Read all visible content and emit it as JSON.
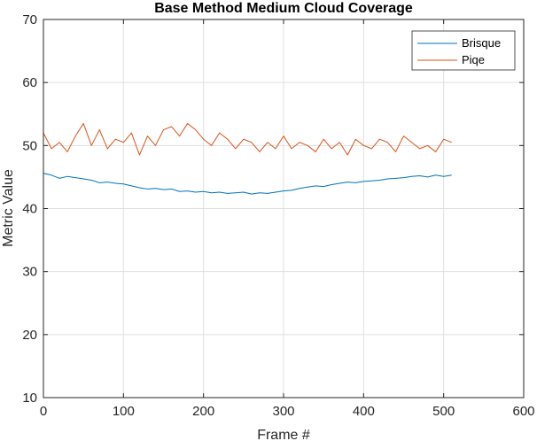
{
  "chart_data": {
    "type": "line",
    "title": "Base Method Medium Cloud Coverage",
    "xlabel": "Frame #",
    "ylabel": "Metric Value",
    "xlim": [
      0,
      600
    ],
    "ylim": [
      10,
      70
    ],
    "xticks": [
      0,
      100,
      200,
      300,
      400,
      500,
      600
    ],
    "yticks": [
      10,
      20,
      30,
      40,
      50,
      60,
      70
    ],
    "grid": true,
    "legend_position": "top-right",
    "x": [
      0,
      10,
      20,
      30,
      40,
      50,
      60,
      70,
      80,
      90,
      100,
      110,
      120,
      130,
      140,
      150,
      160,
      170,
      180,
      190,
      200,
      210,
      220,
      230,
      240,
      250,
      260,
      270,
      280,
      290,
      300,
      310,
      320,
      330,
      340,
      350,
      360,
      370,
      380,
      390,
      400,
      410,
      420,
      430,
      440,
      450,
      460,
      470,
      480,
      490,
      500,
      510
    ],
    "series": [
      {
        "name": "Brisque",
        "color": "#0072BD",
        "values": [
          45.6,
          45.3,
          44.8,
          45.1,
          44.9,
          44.7,
          44.5,
          44.1,
          44.2,
          44.0,
          43.9,
          43.6,
          43.3,
          43.1,
          43.2,
          43.0,
          43.1,
          42.7,
          42.8,
          42.6,
          42.7,
          42.5,
          42.6,
          42.4,
          42.5,
          42.6,
          42.3,
          42.5,
          42.4,
          42.6,
          42.8,
          42.9,
          43.2,
          43.4,
          43.6,
          43.5,
          43.8,
          44.0,
          44.2,
          44.1,
          44.3,
          44.4,
          44.5,
          44.7,
          44.8,
          44.9,
          45.1,
          45.2,
          45.0,
          45.3,
          45.1,
          45.3
        ]
      },
      {
        "name": "Piqe",
        "color": "#D95319",
        "values": [
          52.0,
          49.5,
          50.5,
          49.0,
          51.5,
          53.5,
          50.0,
          52.5,
          49.5,
          51.0,
          50.5,
          52.0,
          48.5,
          51.5,
          50.0,
          52.5,
          53.0,
          51.5,
          53.5,
          52.5,
          51.0,
          50.0,
          52.0,
          51.0,
          49.5,
          51.0,
          50.5,
          49.0,
          50.5,
          49.5,
          51.5,
          49.5,
          50.5,
          50.0,
          49.0,
          51.0,
          49.5,
          50.5,
          48.5,
          51.0,
          50.0,
          49.5,
          51.0,
          50.5,
          49.0,
          51.5,
          50.5,
          49.5,
          50.0,
          49.0,
          51.0,
          50.5
        ]
      }
    ]
  }
}
